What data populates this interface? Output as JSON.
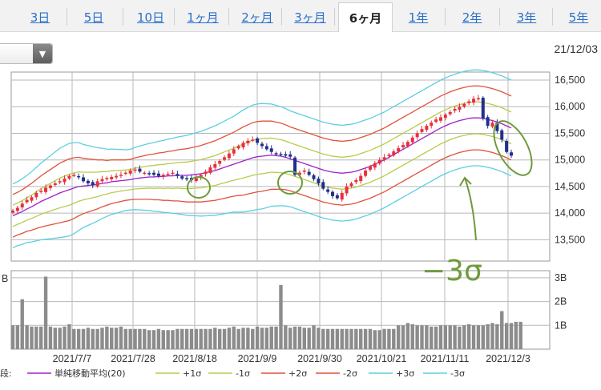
{
  "tabs": [
    {
      "label": "3日",
      "active": false
    },
    {
      "label": "5日",
      "active": false
    },
    {
      "label": "10日",
      "active": false
    },
    {
      "label": "1ヶ月",
      "active": false
    },
    {
      "label": "2ヶ月",
      "active": false
    },
    {
      "label": "3ヶ月",
      "active": false
    },
    {
      "label": "6ヶ月",
      "active": true
    },
    {
      "label": "1年",
      "active": false
    },
    {
      "label": "2年",
      "active": false
    },
    {
      "label": "3年",
      "active": false
    },
    {
      "label": "5年",
      "active": false
    }
  ],
  "dropdown": {
    "value": "",
    "arrow": "▼"
  },
  "as_of_date": "21/12/03",
  "annotation": "−3σ",
  "chart_data": [
    {
      "type": "candlestick",
      "ylim": [
        13100,
        16650
      ],
      "y_ticks": [
        "16,500",
        "16,000",
        "15,500",
        "15,000",
        "14,500",
        "14,000",
        "13,500"
      ],
      "y_tick_values": [
        16500,
        16000,
        15500,
        15000,
        14500,
        14000,
        13500
      ],
      "x_ticks": [
        "2021/7/7",
        "2021/7/28",
        "2021/8/18",
        "2021/9/9",
        "2021/9/30",
        "2021/10/21",
        "2021/11/11",
        "2021/12/3"
      ],
      "grid": true,
      "closes": [
        14050,
        14100,
        14180,
        14250,
        14300,
        14380,
        14420,
        14480,
        14520,
        14560,
        14600,
        14650,
        14700,
        14720,
        14680,
        14600,
        14560,
        14520,
        14600,
        14640,
        14660,
        14680,
        14700,
        14720,
        14760,
        14800,
        14820,
        14780,
        14760,
        14750,
        14720,
        14700,
        14720,
        14740,
        14760,
        14700,
        14650,
        14640,
        14620,
        14660,
        14720,
        14780,
        14860,
        14920,
        14980,
        15050,
        15120,
        15200,
        15260,
        15320,
        15360,
        15380,
        15320,
        15260,
        15200,
        15150,
        15120,
        15100,
        15080,
        15060,
        14720,
        14760,
        14800,
        14720,
        14640,
        14560,
        14460,
        14400,
        14320,
        14280,
        14380,
        14500,
        14560,
        14620,
        14700,
        14800,
        14880,
        14940,
        15000,
        15050,
        15100,
        15160,
        15220,
        15280,
        15340,
        15420,
        15500,
        15580,
        15640,
        15700,
        15760,
        15800,
        15850,
        15900,
        15960,
        16000,
        16050,
        16100,
        16150,
        16160,
        15780,
        15640,
        15700,
        15540,
        15380,
        15150,
        15080
      ],
      "ma20": [
        13950,
        13990,
        14030,
        14080,
        14120,
        14170,
        14220,
        14260,
        14300,
        14340,
        14380,
        14410,
        14440,
        14470,
        14500,
        14510,
        14520,
        14530,
        14540,
        14560,
        14570,
        14590,
        14600,
        14610,
        14620,
        14630,
        14650,
        14660,
        14670,
        14680,
        14680,
        14690,
        14690,
        14700,
        14700,
        14710,
        14710,
        14710,
        14720,
        14730,
        14740,
        14760,
        14780,
        14800,
        14830,
        14860,
        14890,
        14920,
        14950,
        14980,
        15010,
        15040,
        15060,
        15070,
        15080,
        15090,
        15080,
        15070,
        15050,
        15020,
        14990,
        14960,
        14930,
        14900,
        14870,
        14840,
        14810,
        14790,
        14770,
        14760,
        14750,
        14760,
        14770,
        14790,
        14820,
        14850,
        14880,
        14920,
        14960,
        15000,
        15050,
        15100,
        15150,
        15200,
        15250,
        15300,
        15350,
        15400,
        15450,
        15500,
        15550,
        15600,
        15640,
        15680,
        15710,
        15740,
        15760,
        15780,
        15790,
        15790,
        15780,
        15760,
        15740,
        15710,
        15680,
        15640,
        15600
      ],
      "band_offsets": [
        [
          200,
          200,
          205,
          210,
          220,
          230,
          240,
          250,
          260,
          270,
          280,
          285,
          290,
          285,
          275,
          260,
          250,
          240,
          230,
          220,
          210,
          205,
          200,
          195,
          190,
          190,
          195,
          200,
          205,
          210,
          215,
          220,
          225,
          230,
          235,
          240,
          245,
          250,
          255,
          260,
          265,
          270,
          275,
          280,
          285,
          290,
          295,
          300,
          310,
          320,
          325,
          330,
          330,
          330,
          325,
          320,
          315,
          310,
          305,
          300,
          300,
          300,
          300,
          300,
          300,
          300,
          300,
          300,
          300,
          300,
          300,
          300,
          300,
          300,
          300,
          300,
          300,
          300,
          300,
          300,
          300,
          300,
          300,
          300,
          300,
          300,
          300,
          300,
          300,
          300,
          300,
          300,
          300,
          300,
          300,
          300,
          300,
          300,
          300,
          300,
          300,
          300,
          300,
          300,
          300,
          300,
          300
        ]
      ],
      "series": [
        {
          "name": "単純移動平均(20)",
          "color": "#a020c8"
        },
        {
          "name": "+1σ",
          "color": "#b8cc4a"
        },
        {
          "name": "-1σ",
          "color": "#b8cc4a"
        },
        {
          "name": "+2σ",
          "color": "#e0523c"
        },
        {
          "name": "-2σ",
          "color": "#e0523c"
        },
        {
          "name": "+3σ",
          "color": "#5ccfe0"
        },
        {
          "name": "-3σ",
          "color": "#5ccfe0"
        }
      ],
      "colors": {
        "up": "#e8303a",
        "down": "#1f2f8c",
        "grid": "#b8b8b8"
      }
    },
    {
      "type": "bar",
      "title_fragment": "B",
      "y_ticks": [
        "3B",
        "2B",
        "1B"
      ],
      "y_tick_values": [
        3,
        2,
        1
      ],
      "ylim": [
        0,
        3.3
      ],
      "values": [
        1.0,
        1.0,
        2.1,
        1.0,
        0.95,
        0.95,
        0.95,
        3.05,
        0.95,
        0.9,
        0.9,
        0.95,
        1.05,
        0.85,
        0.85,
        0.85,
        0.9,
        0.85,
        0.85,
        0.9,
        0.95,
        0.9,
        0.9,
        0.95,
        0.85,
        0.85,
        0.85,
        0.85,
        0.85,
        0.8,
        0.8,
        0.85,
        0.8,
        0.8,
        0.8,
        0.85,
        0.85,
        0.85,
        0.85,
        0.85,
        0.85,
        0.85,
        0.85,
        0.9,
        0.85,
        0.85,
        0.9,
        0.95,
        0.85,
        0.9,
        0.9,
        0.85,
        0.95,
        0.9,
        0.9,
        0.95,
        0.95,
        2.7,
        1.0,
        0.9,
        0.95,
        0.95,
        0.9,
        0.9,
        1.0,
        0.9,
        0.85,
        0.85,
        0.85,
        0.85,
        0.85,
        0.85,
        0.85,
        0.85,
        0.85,
        0.85,
        0.85,
        0.8,
        0.8,
        0.85,
        0.85,
        0.85,
        1.0,
        1.0,
        1.1,
        1.05,
        1.0,
        1.0,
        1.0,
        0.95,
        0.95,
        1.0,
        1.0,
        1.0,
        1.0,
        0.95,
        1.0,
        1.05,
        1.0,
        1.0,
        1.0,
        1.05,
        1.1,
        1.05,
        1.6,
        1.1,
        1.1,
        1.15,
        1.15
      ]
    }
  ],
  "legend": {
    "prefix": "段:",
    "items": [
      {
        "label": "単純移動平均(20)",
        "color": "#a020c8"
      },
      {
        "label": "+1σ",
        "color": "#b8cc4a"
      },
      {
        "label": "-1σ",
        "color": "#b8cc4a"
      },
      {
        "label": "+2σ",
        "color": "#e0523c"
      },
      {
        "label": "-2σ",
        "color": "#e0523c"
      },
      {
        "label": "+3σ",
        "color": "#5ccfe0"
      },
      {
        "label": "-3σ",
        "color": "#5ccfe0"
      }
    ]
  }
}
